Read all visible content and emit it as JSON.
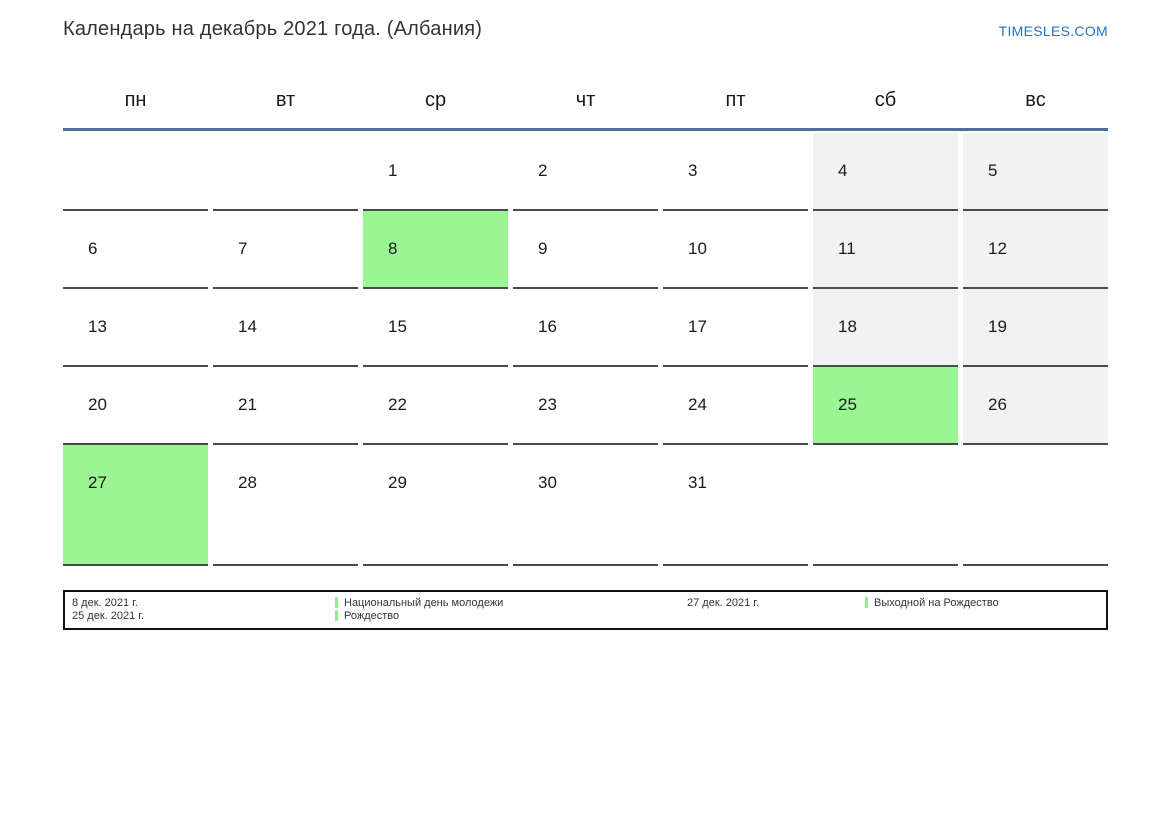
{
  "page": {
    "title": "Календарь на декабрь 2021 года. (Албания)",
    "brand": "TIMESLES.COM"
  },
  "calendar": {
    "weekdays": [
      "пн",
      "вт",
      "ср",
      "чт",
      "пт",
      "сб",
      "вс"
    ],
    "weeks": [
      [
        "",
        "",
        "1",
        "2",
        "3",
        "4",
        "5"
      ],
      [
        "6",
        "7",
        "8",
        "9",
        "10",
        "11",
        "12"
      ],
      [
        "13",
        "14",
        "15",
        "16",
        "17",
        "18",
        "19"
      ],
      [
        "20",
        "21",
        "22",
        "23",
        "24",
        "25",
        "26"
      ],
      [
        "27",
        "28",
        "29",
        "30",
        "31",
        "",
        ""
      ]
    ],
    "holiday_days": [
      "8",
      "25",
      "27"
    ],
    "weekend_columns": [
      5,
      6
    ]
  },
  "legend": {
    "groups": [
      {
        "dates": [
          "8 дек. 2021 г.",
          "25 дек. 2021 г."
        ],
        "events": [
          "Национальный день молодежи",
          "Рождество"
        ]
      },
      {
        "dates": [
          "27 дек. 2021 г."
        ],
        "events": [
          "Выходной на Рождество"
        ]
      }
    ]
  },
  "colors": {
    "holiday_green": "#99f692",
    "marker_green": "#90ee90",
    "weekend_gray": "#f2f2f2",
    "rule_blue": "#4f7199",
    "cell_border": "#4a4a4a",
    "brand_blue": "#2474c4"
  }
}
